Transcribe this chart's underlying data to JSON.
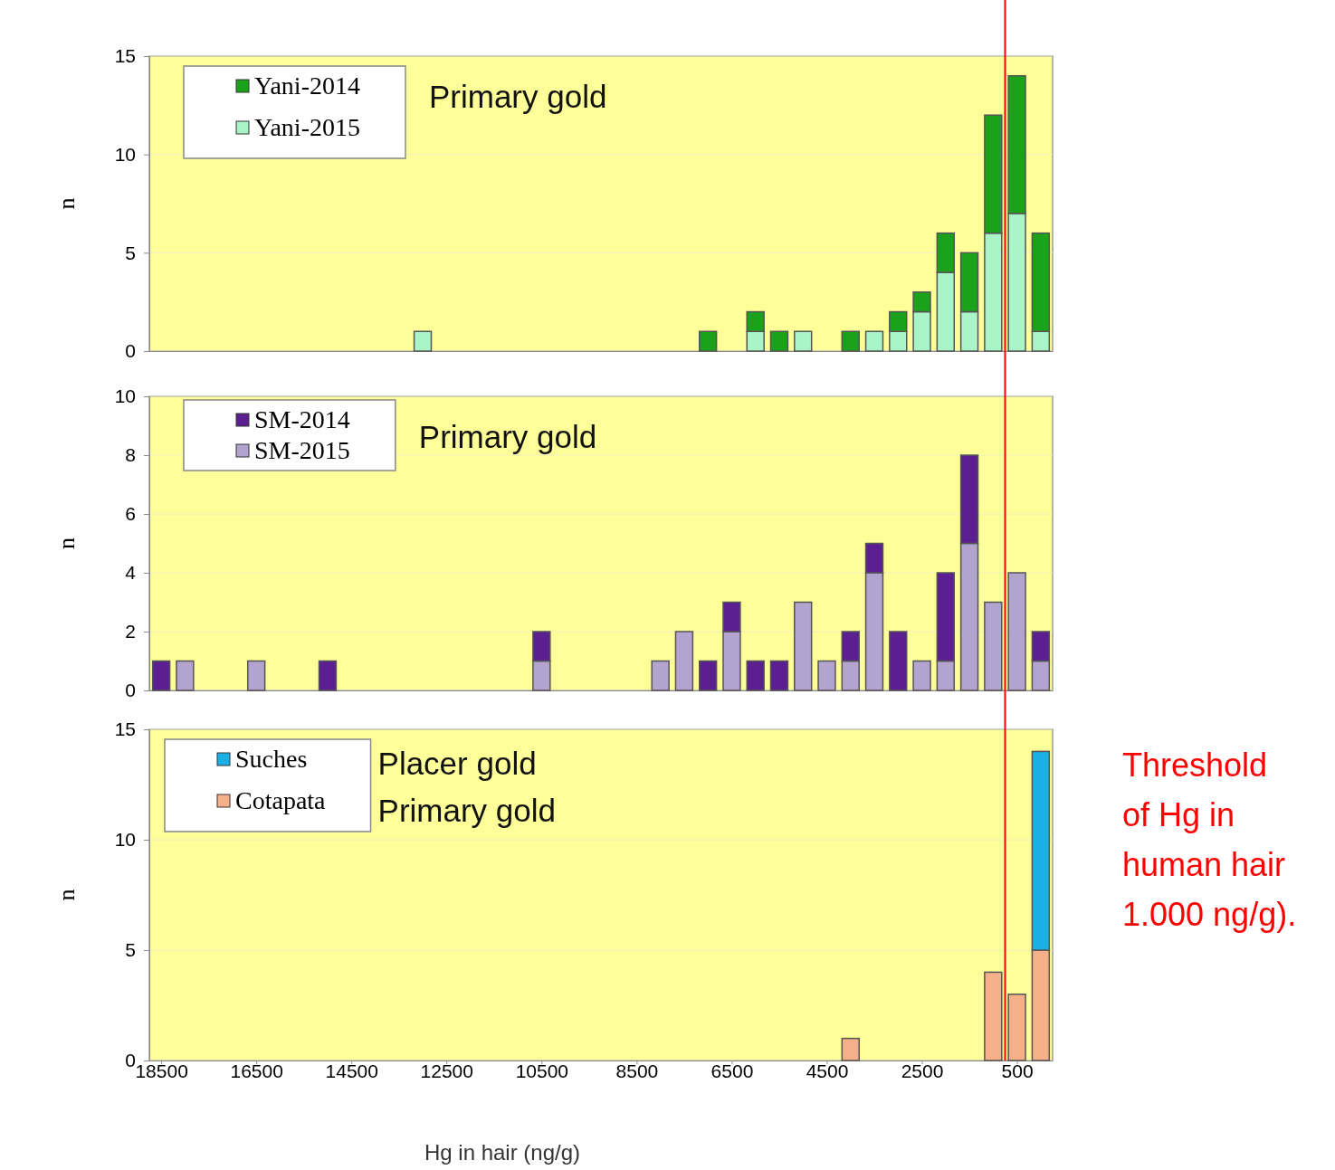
{
  "chart_data": [
    {
      "type": "bar",
      "stacked": true,
      "annotations": [
        "Primary gold"
      ],
      "ylabel": "n",
      "tick_labels": "y",
      "legend": "top left",
      "grid": "y",
      "x": [
        13000,
        7000,
        6000,
        5500,
        5000,
        4000,
        3500,
        3000,
        2500,
        2000,
        1500,
        1000,
        500,
        0
      ],
      "xlim": [
        18750,
        -250
      ],
      "xticks": [
        18500,
        16500,
        14500,
        12500,
        10500,
        8500,
        6500,
        4500,
        2500,
        500
      ],
      "ylim": [
        0,
        15
      ],
      "yticks": [
        0,
        5,
        10,
        15
      ],
      "series": [
        {
          "name": "Yani-2015",
          "color": "#aaf5c8",
          "values": [
            1,
            null,
            1,
            null,
            1,
            null,
            1,
            1,
            2,
            4,
            2,
            6,
            7,
            1
          ]
        },
        {
          "name": "Yani-2014",
          "color": "#1aa31a",
          "values": [
            null,
            1,
            1,
            1,
            null,
            1,
            null,
            1,
            1,
            2,
            3,
            6,
            7,
            5
          ]
        }
      ],
      "ref_lines": [
        {
          "axis": "x",
          "value": 750,
          "color": "#ff0000"
        }
      ]
    },
    {
      "type": "bar",
      "stacked": true,
      "annotations": [
        "Primary gold"
      ],
      "ylabel": "n",
      "tick_labels": "y",
      "legend": "top left",
      "grid": "y",
      "x": [
        18500,
        18000,
        16500,
        15000,
        10500,
        8000,
        7500,
        7000,
        6500,
        6000,
        5500,
        5000,
        4500,
        4000,
        3500,
        3000,
        2500,
        2000,
        1500,
        1000,
        500,
        0
      ],
      "xlim": [
        18750,
        -250
      ],
      "xticks": [
        18500,
        16500,
        14500,
        12500,
        10500,
        8500,
        6500,
        4500,
        2500,
        500
      ],
      "ylim": [
        0,
        10
      ],
      "yticks": [
        0,
        2,
        4,
        6,
        8,
        10
      ],
      "series": [
        {
          "name": "SM-2015",
          "color": "#b3a3cf",
          "values": [
            null,
            1,
            1,
            null,
            1,
            1,
            2,
            null,
            2,
            null,
            null,
            3,
            1,
            1,
            4,
            null,
            1,
            1,
            5,
            3,
            4,
            1
          ]
        },
        {
          "name": "SM-2014",
          "color": "#5b1f91",
          "values": [
            1,
            null,
            null,
            1,
            1,
            null,
            null,
            1,
            1,
            1,
            1,
            null,
            null,
            1,
            1,
            2,
            null,
            3,
            3,
            null,
            null,
            1
          ]
        }
      ],
      "ref_lines": [
        {
          "axis": "x",
          "value": 750,
          "color": "#ff0000"
        }
      ]
    },
    {
      "type": "bar",
      "stacked": true,
      "annotations": [
        "Placer gold",
        "Primary gold"
      ],
      "ylabel": "n",
      "xlabel": "Hg in hair (ng/g)",
      "legend": "top left",
      "grid": "y",
      "xlim": [
        18750,
        -250
      ],
      "xticks": [
        18500,
        16500,
        14500,
        12500,
        10500,
        8500,
        6500,
        4500,
        2500,
        500
      ],
      "ylim": [
        0,
        15
      ],
      "yticks": [
        0,
        5,
        10,
        15
      ],
      "x": [
        4000,
        1000,
        500,
        0
      ],
      "series": [
        {
          "name": "Cotapata",
          "color": "#f5b08a",
          "values": [
            1,
            4,
            3,
            5
          ]
        },
        {
          "name": "Suches",
          "color": "#1ab0e6",
          "values": [
            null,
            null,
            null,
            9
          ]
        }
      ],
      "ref_lines": [
        {
          "axis": "x",
          "value": 750,
          "color": "#ff0000",
          "label": "Threshold of Hg in human hair 1.000 ng/g)."
        }
      ]
    }
  ]
}
